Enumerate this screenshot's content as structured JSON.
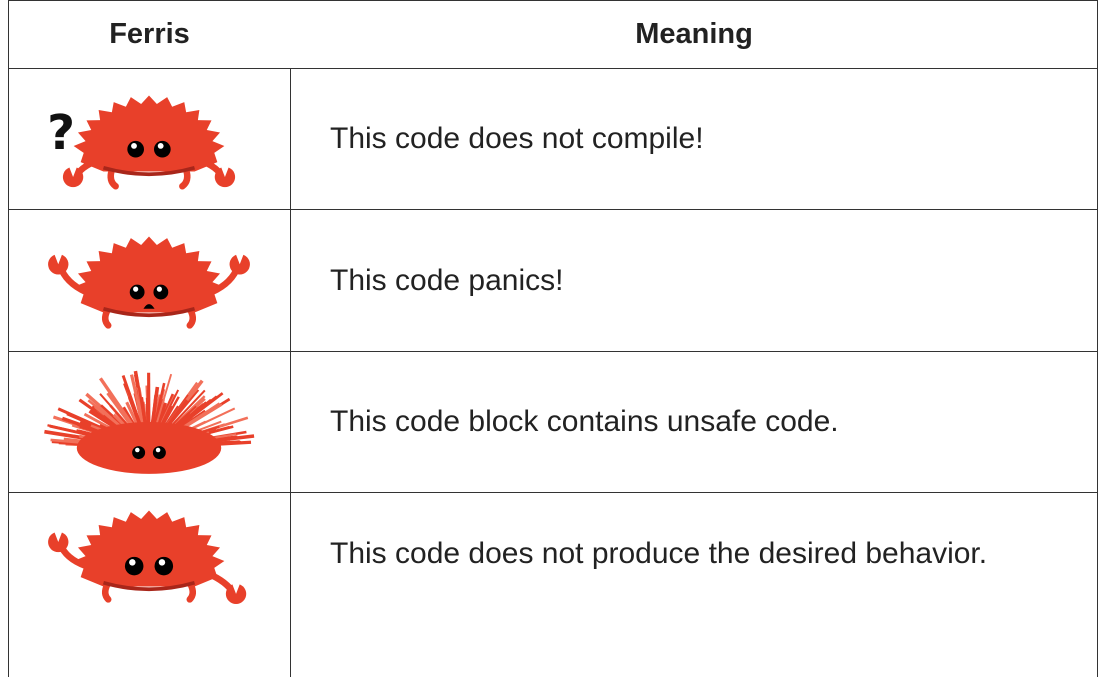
{
  "table": {
    "columns": [
      "Ferris",
      "Meaning"
    ],
    "rows": [
      {
        "ferris_annotation": "?",
        "meaning": "This code does not compile!"
      },
      {
        "meaning": "This code panics!"
      },
      {
        "meaning": "This code block contains unsafe code."
      },
      {
        "meaning": "This code does not produce the desired behavior."
      }
    ]
  }
}
